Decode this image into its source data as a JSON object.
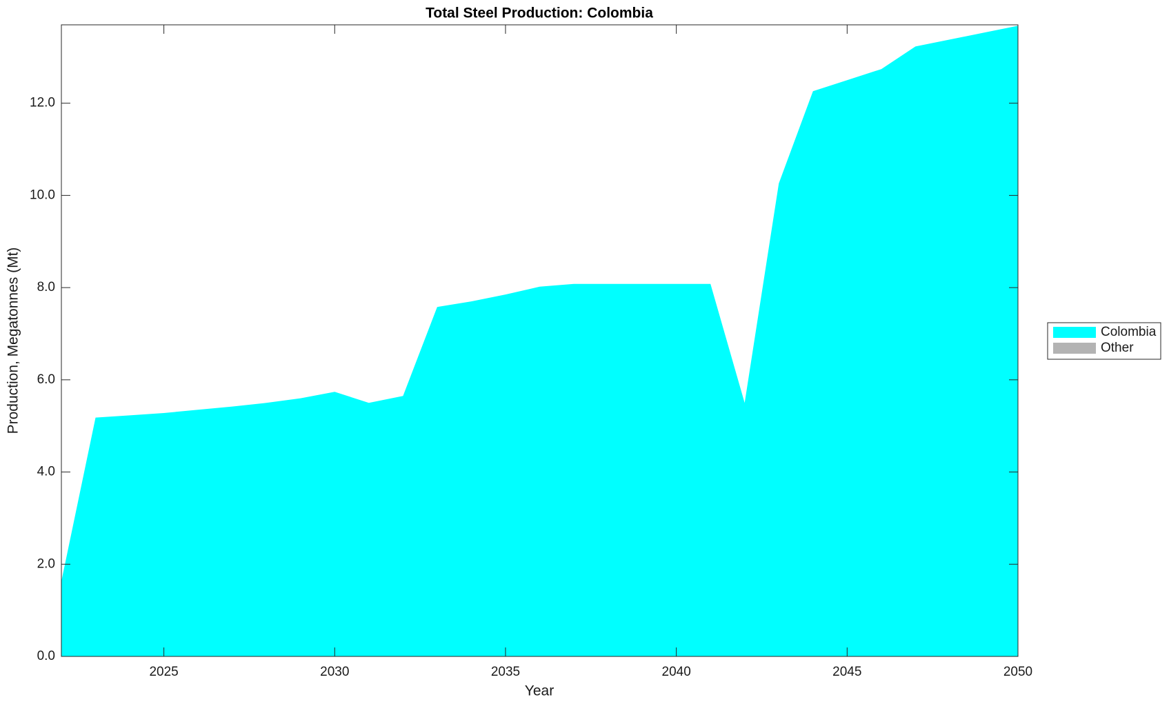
{
  "chart_data": {
    "type": "area",
    "stacked": true,
    "title": "Total Steel Production: Colombia",
    "x_label": "Year",
    "y_label": "Production, Megatonnes (Mt)",
    "x": [
      2022,
      2023,
      2024,
      2025,
      2026,
      2027,
      2028,
      2029,
      2030,
      2031,
      2032,
      2033,
      2034,
      2035,
      2036,
      2037,
      2038,
      2039,
      2040,
      2041,
      2042,
      2043,
      2044,
      2045,
      2046,
      2047,
      2048,
      2049,
      2050
    ],
    "series": [
      {
        "name": "Colombia",
        "color": "#00ffff",
        "values": [
          1.63,
          5.18,
          5.23,
          5.28,
          5.35,
          5.42,
          5.5,
          5.6,
          5.74,
          5.5,
          5.65,
          7.58,
          7.7,
          7.85,
          8.02,
          8.08,
          8.08,
          8.08,
          8.08,
          8.08,
          5.5,
          10.26,
          12.26,
          12.5,
          12.74,
          13.23,
          13.38,
          13.53,
          13.68
        ]
      },
      {
        "name": "Other",
        "color": "#b3b3b3",
        "values": [
          0,
          0,
          0,
          0,
          0,
          0,
          0,
          0,
          0,
          0,
          0,
          0,
          0,
          0,
          0,
          0,
          0,
          0,
          0,
          0,
          0,
          0,
          0,
          0,
          0,
          0,
          0,
          0,
          0
        ]
      }
    ],
    "xlim": [
      2022,
      2050
    ],
    "xticks": [
      2025,
      2030,
      2035,
      2040,
      2045,
      2050
    ],
    "ylim": [
      0,
      13.7
    ],
    "yticks": [
      {
        "value": 0,
        "label": "0.0"
      },
      {
        "value": 2,
        "label": "2.0"
      },
      {
        "value": 4,
        "label": "4.0"
      },
      {
        "value": 6,
        "label": "6.0"
      },
      {
        "value": 8,
        "label": "8.0"
      },
      {
        "value": 10,
        "label": "10.0"
      },
      {
        "value": 12,
        "label": "12.0"
      }
    ],
    "legend": "outside right"
  }
}
